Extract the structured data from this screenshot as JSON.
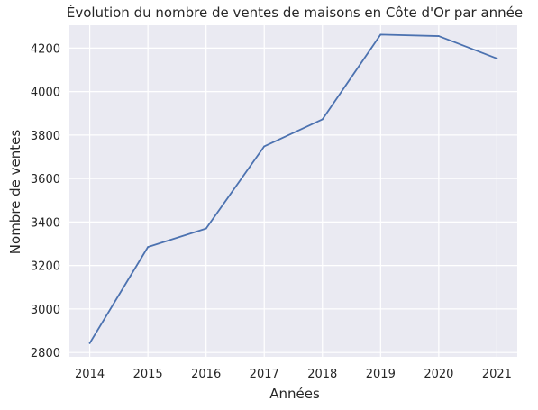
{
  "chart_data": {
    "type": "line",
    "title": "Évolution du nombre de ventes de maisons en Côte d'Or par année",
    "xlabel": "Années",
    "ylabel": "Nombre de ventes",
    "x": [
      2014,
      2015,
      2016,
      2017,
      2018,
      2019,
      2020,
      2021
    ],
    "series": [
      {
        "values": [
          2843,
          3285,
          3370,
          3748,
          3872,
          4262,
          4255,
          4152
        ]
      }
    ],
    "xlim": [
      2013.65,
      2021.35
    ],
    "ylim": [
      2780,
      4305
    ],
    "xticks": [
      "2014",
      "2015",
      "2016",
      "2017",
      "2018",
      "2019",
      "2020",
      "2021"
    ],
    "yticks": [
      "2800",
      "3000",
      "3200",
      "3400",
      "3600",
      "3800",
      "4000",
      "4200"
    ],
    "grid": true,
    "legend": "none",
    "colors": {
      "background": "#eaeaf2",
      "grid": "#ffffff",
      "line": "#4c72b0"
    }
  }
}
